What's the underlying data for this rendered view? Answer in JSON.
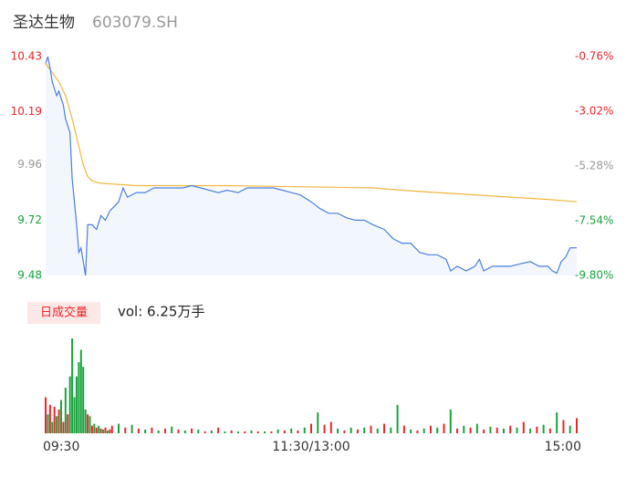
{
  "chart_data": {
    "type": "line",
    "title": "圣达生物",
    "subtitle": "603079.SH",
    "xlim": [
      0,
      240
    ],
    "xticks": [
      {
        "value": 0,
        "label": "09:30"
      },
      {
        "value": 120,
        "label": "11:30/13:00"
      },
      {
        "value": 240,
        "label": "15:00"
      }
    ],
    "ylim": [
      9.48,
      10.43
    ],
    "yticks": [
      10.43,
      10.19,
      9.96,
      9.72,
      9.48
    ],
    "y2lim": [
      -9.8,
      -0.76
    ],
    "y2ticks": [
      {
        "value": -0.76,
        "label": "-0.76%"
      },
      {
        "value": -3.02,
        "label": "-3.02%"
      },
      {
        "value": -5.28,
        "label": "-5.28%"
      },
      {
        "value": -7.54,
        "label": "-7.54%"
      },
      {
        "value": -9.8,
        "label": "-9.80%"
      }
    ],
    "series": [
      {
        "name": "price",
        "color": "#4a7fe0",
        "x": [
          0,
          1,
          2,
          3,
          5,
          6,
          8,
          9,
          11,
          12,
          14,
          15,
          16,
          18,
          19,
          21,
          23,
          25,
          27,
          29,
          31,
          33,
          35,
          37,
          41,
          45,
          49,
          54,
          58,
          62,
          66,
          70,
          74,
          78,
          82,
          87,
          91,
          95,
          99,
          103,
          107,
          111,
          115,
          120,
          124,
          128,
          132,
          136,
          140,
          144,
          148,
          153,
          157,
          161,
          165,
          169,
          173,
          177,
          181,
          183,
          186,
          190,
          194,
          196,
          198,
          202,
          206,
          210,
          214,
          219,
          223,
          227,
          229,
          231,
          233,
          235,
          237,
          240
        ],
        "values": [
          10.4,
          10.43,
          10.38,
          10.32,
          10.26,
          10.28,
          10.22,
          10.16,
          10.1,
          9.9,
          9.7,
          9.58,
          9.6,
          9.48,
          9.7,
          9.7,
          9.68,
          9.74,
          9.72,
          9.76,
          9.78,
          9.8,
          9.86,
          9.82,
          9.84,
          9.84,
          9.86,
          9.86,
          9.86,
          9.86,
          9.87,
          9.86,
          9.85,
          9.84,
          9.85,
          9.84,
          9.86,
          9.86,
          9.86,
          9.86,
          9.85,
          9.84,
          9.83,
          9.8,
          9.77,
          9.75,
          9.75,
          9.73,
          9.72,
          9.72,
          9.7,
          9.68,
          9.64,
          9.62,
          9.62,
          9.58,
          9.57,
          9.57,
          9.55,
          9.5,
          9.52,
          9.5,
          9.52,
          9.55,
          9.5,
          9.52,
          9.52,
          9.52,
          9.53,
          9.54,
          9.52,
          9.52,
          9.5,
          9.49,
          9.54,
          9.56,
          9.6,
          9.6
        ]
      },
      {
        "name": "average",
        "color": "#f2b640",
        "x": [
          0,
          3,
          6,
          9,
          12,
          15,
          17,
          19,
          21,
          25,
          41,
          82,
          148,
          161,
          177,
          194,
          210,
          227,
          240
        ],
        "values": [
          10.4,
          10.36,
          10.32,
          10.26,
          10.16,
          10.04,
          9.96,
          9.91,
          9.89,
          9.88,
          9.87,
          9.87,
          9.86,
          9.85,
          9.84,
          9.83,
          9.82,
          9.81,
          9.8
        ]
      }
    ],
    "volume": {
      "label": "日成交量",
      "text": "vol: 6.25万手",
      "ylim": [
        0,
        100
      ],
      "up_color": "#e8272b",
      "down_color": "#1aa33e",
      "x": [
        0,
        1,
        2,
        3,
        4,
        5,
        6,
        7,
        8,
        9,
        10,
        11,
        12,
        13,
        14,
        15,
        16,
        17,
        18,
        19,
        20,
        21,
        22,
        23,
        24,
        25,
        26,
        27,
        28,
        29,
        30,
        33,
        36,
        39,
        42,
        45,
        48,
        51,
        54,
        57,
        60,
        63,
        66,
        69,
        72,
        75,
        78,
        81,
        84,
        87,
        90,
        93,
        96,
        99,
        102,
        105,
        108,
        111,
        114,
        117,
        120,
        123,
        126,
        129,
        132,
        135,
        138,
        141,
        144,
        147,
        150,
        153,
        156,
        159,
        162,
        165,
        168,
        171,
        174,
        177,
        180,
        183,
        186,
        189,
        192,
        195,
        198,
        201,
        204,
        207,
        210,
        213,
        216,
        219,
        222,
        225,
        228,
        231,
        234,
        237,
        240
      ],
      "values": [
        38,
        20,
        30,
        12,
        28,
        18,
        25,
        35,
        12,
        48,
        20,
        60,
        100,
        38,
        60,
        75,
        88,
        70,
        25,
        20,
        18,
        8,
        10,
        6,
        8,
        5,
        4,
        6,
        3,
        4,
        8,
        10,
        6,
        9,
        5,
        4,
        6,
        3,
        5,
        7,
        4,
        3,
        5,
        4,
        2,
        3,
        6,
        2,
        3,
        2,
        2,
        3,
        2,
        2,
        2,
        4,
        3,
        5,
        3,
        6,
        10,
        22,
        9,
        12,
        5,
        3,
        6,
        4,
        6,
        8,
        5,
        10,
        6,
        30,
        8,
        4,
        3,
        5,
        8,
        6,
        10,
        25,
        5,
        8,
        6,
        10,
        4,
        7,
        6,
        5,
        8,
        6,
        12,
        5,
        7,
        9,
        5,
        22,
        14,
        8,
        16
      ],
      "up": [
        true,
        false,
        true,
        false,
        true,
        false,
        true,
        false,
        true,
        false,
        true,
        false,
        false,
        false,
        false,
        false,
        false,
        false,
        false,
        true,
        false,
        true,
        false,
        true,
        false,
        true,
        false,
        true,
        false,
        true,
        true,
        false,
        true,
        false,
        true,
        false,
        true,
        false,
        true,
        false,
        true,
        false,
        true,
        false,
        true,
        false,
        true,
        false,
        true,
        false,
        true,
        false,
        true,
        false,
        true,
        false,
        true,
        false,
        true,
        false,
        true,
        false,
        true,
        true,
        false,
        true,
        false,
        true,
        false,
        true,
        false,
        true,
        false,
        false,
        true,
        false,
        true,
        false,
        true,
        false,
        true,
        false,
        true,
        false,
        true,
        false,
        true,
        false,
        true,
        false,
        true,
        false,
        true,
        false,
        true,
        false,
        true,
        false,
        true,
        false,
        true
      ]
    }
  }
}
